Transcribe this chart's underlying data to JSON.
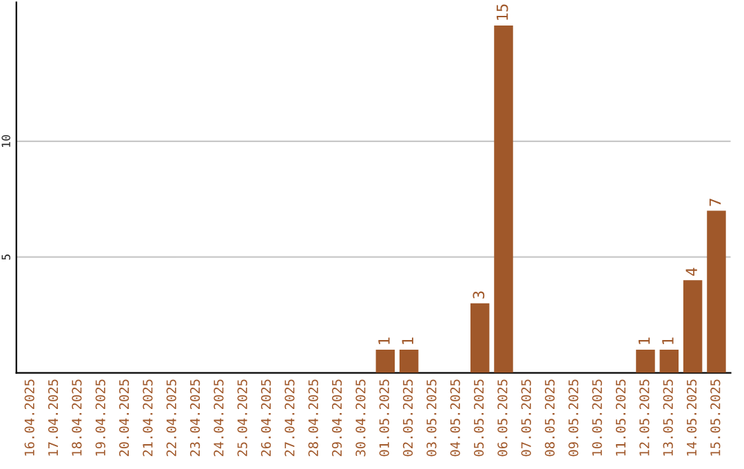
{
  "chart_data": {
    "type": "bar",
    "categories": [
      "16.04.2025",
      "17.04.2025",
      "18.04.2025",
      "19.04.2025",
      "20.04.2025",
      "21.04.2025",
      "22.04.2025",
      "23.04.2025",
      "24.04.2025",
      "25.04.2025",
      "26.04.2025",
      "27.04.2025",
      "28.04.2025",
      "29.04.2025",
      "30.04.2025",
      "01.05.2025",
      "02.05.2025",
      "03.05.2025",
      "04.05.2025",
      "05.05.2025",
      "06.05.2025",
      "07.05.2025",
      "08.05.2025",
      "09.05.2025",
      "10.05.2025",
      "11.05.2025",
      "12.05.2025",
      "13.05.2025",
      "14.05.2025",
      "15.05.2025"
    ],
    "values": [
      0,
      0,
      0,
      0,
      0,
      0,
      0,
      0,
      0,
      0,
      0,
      0,
      0,
      0,
      0,
      1,
      1,
      0,
      0,
      3,
      15,
      0,
      0,
      0,
      0,
      0,
      1,
      1,
      4,
      7
    ],
    "value_labels": [
      null,
      null,
      null,
      null,
      null,
      null,
      null,
      null,
      null,
      null,
      null,
      null,
      null,
      null,
      null,
      "1",
      "1",
      null,
      null,
      "3",
      "15",
      null,
      null,
      null,
      null,
      null,
      "1",
      "1",
      "4",
      "7"
    ],
    "color": "#a0582a",
    "ylim": [
      0,
      16
    ],
    "yticks": [
      5,
      10
    ],
    "grid": "y"
  }
}
